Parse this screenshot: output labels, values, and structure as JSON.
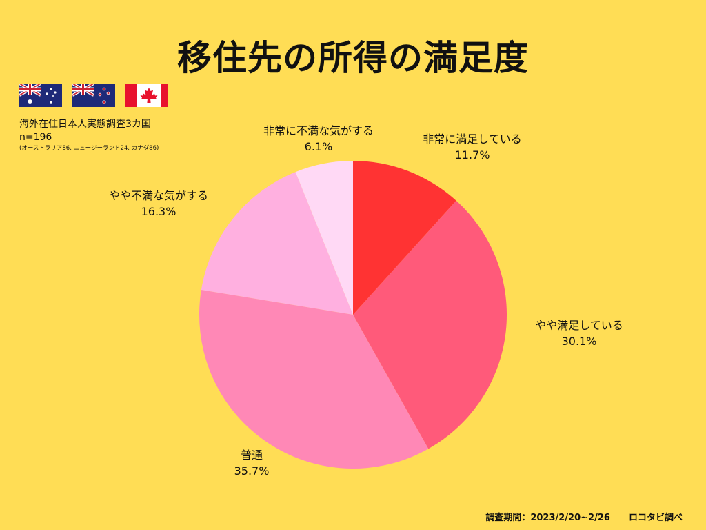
{
  "title": "移住先の所得の満足度",
  "survey": {
    "description": "海外在住日本人実態調査3カ国",
    "n": "n=196",
    "breakdown": "(オーストラリア86, ニュージーランド24, カナダ86)"
  },
  "flags": [
    "australia-flag-icon",
    "new-zealand-flag-icon",
    "canada-flag-icon"
  ],
  "footer": {
    "period": "調査期間：2023/2/20~2/26",
    "source": "ロコタビ調べ"
  },
  "colors": {
    "background": "#FFDD55",
    "slices": [
      "#FF3333",
      "#FF5A7A",
      "#FF88B6",
      "#FFB0E0",
      "#FFD9F5"
    ]
  },
  "chart_data": {
    "type": "pie",
    "title": "移住先の所得の満足度",
    "labels": [
      "非常に満足している",
      "やや満足している",
      "普通",
      "やや不満な気がする",
      "非常に不満な気がする"
    ],
    "values": [
      11.7,
      30.1,
      35.7,
      16.3,
      6.1
    ],
    "value_labels": [
      "11.7%",
      "30.1%",
      "35.7%",
      "16.3%",
      "6.1%"
    ],
    "start": "12 o'clock, clockwise"
  }
}
